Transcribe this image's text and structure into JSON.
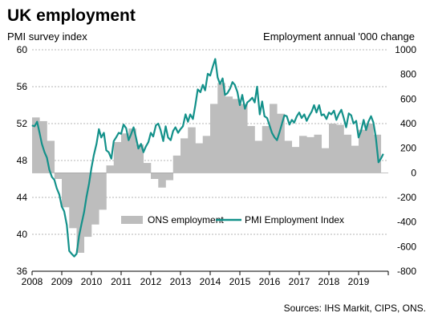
{
  "chart_data": {
    "type": "bar+line",
    "title": "UK employment",
    "left_axis_label": "PMI survey index",
    "right_axis_label": "Employment annual '000 change",
    "source": "Sources: IHS Markit, CIPS, ONS.",
    "x_ticks": [
      "2008",
      "2009",
      "2010",
      "2011",
      "2012",
      "2013",
      "2014",
      "2015",
      "2016",
      "2017",
      "2018",
      "2019"
    ],
    "x_range": [
      2008.0,
      2020.0
    ],
    "left_axis": {
      "min": 36,
      "max": 60,
      "ticks": [
        36,
        40,
        44,
        48,
        52,
        56,
        60
      ],
      "grid": true
    },
    "right_axis": {
      "min": -800,
      "max": 1000,
      "ticks": [
        -800,
        -600,
        -400,
        -200,
        0,
        200,
        400,
        600,
        800,
        1000
      ]
    },
    "legend": {
      "placement": "bottom-right",
      "entries": [
        "ONS employment",
        "PMI Employment Index"
      ]
    },
    "colors": {
      "ons_bars": "#bdbdbd",
      "pmi_line": "#13918a",
      "grid": "#9e9e9e"
    },
    "series": [
      {
        "name": "ONS employment",
        "kind": "bar",
        "axis": "right",
        "x": [
          2008.0,
          2008.25,
          2008.5,
          2008.75,
          2009.0,
          2009.25,
          2009.5,
          2009.75,
          2010.0,
          2010.25,
          2010.5,
          2010.75,
          2011.0,
          2011.25,
          2011.5,
          2011.75,
          2012.0,
          2012.25,
          2012.5,
          2012.75,
          2013.0,
          2013.25,
          2013.5,
          2013.75,
          2014.0,
          2014.25,
          2014.5,
          2014.75,
          2015.0,
          2015.25,
          2015.5,
          2015.75,
          2016.0,
          2016.25,
          2016.5,
          2016.75,
          2017.0,
          2017.25,
          2017.5,
          2017.75,
          2018.0,
          2018.25,
          2018.5,
          2018.75,
          2019.0,
          2019.25,
          2019.5
        ],
        "values": [
          450,
          420,
          260,
          -50,
          -280,
          -450,
          -650,
          -520,
          -420,
          -300,
          60,
          250,
          320,
          360,
          230,
          80,
          -50,
          -120,
          -60,
          140,
          280,
          370,
          240,
          300,
          560,
          730,
          620,
          600,
          560,
          380,
          260,
          380,
          560,
          480,
          260,
          210,
          300,
          290,
          310,
          200,
          400,
          390,
          310,
          220,
          350,
          400,
          310
        ]
      },
      {
        "name": "PMI Employment Index",
        "kind": "line",
        "axis": "left",
        "x": [
          2008.0,
          2008.08,
          2008.17,
          2008.25,
          2008.33,
          2008.42,
          2008.5,
          2008.58,
          2008.67,
          2008.75,
          2008.83,
          2008.92,
          2009.0,
          2009.08,
          2009.17,
          2009.25,
          2009.33,
          2009.42,
          2009.5,
          2009.58,
          2009.67,
          2009.75,
          2009.83,
          2009.92,
          2010.0,
          2010.08,
          2010.17,
          2010.25,
          2010.33,
          2010.42,
          2010.5,
          2010.58,
          2010.67,
          2010.75,
          2010.83,
          2010.92,
          2011.0,
          2011.08,
          2011.17,
          2011.25,
          2011.33,
          2011.42,
          2011.5,
          2011.58,
          2011.67,
          2011.75,
          2011.83,
          2011.92,
          2012.0,
          2012.08,
          2012.17,
          2012.25,
          2012.33,
          2012.42,
          2012.5,
          2012.58,
          2012.67,
          2012.75,
          2012.83,
          2012.92,
          2013.0,
          2013.08,
          2013.17,
          2013.25,
          2013.33,
          2013.42,
          2013.5,
          2013.58,
          2013.67,
          2013.75,
          2013.83,
          2013.92,
          2014.0,
          2014.08,
          2014.17,
          2014.25,
          2014.33,
          2014.42,
          2014.5,
          2014.58,
          2014.67,
          2014.75,
          2014.83,
          2014.92,
          2015.0,
          2015.08,
          2015.17,
          2015.25,
          2015.33,
          2015.42,
          2015.5,
          2015.58,
          2015.67,
          2015.75,
          2015.83,
          2015.92,
          2016.0,
          2016.08,
          2016.17,
          2016.25,
          2016.33,
          2016.42,
          2016.5,
          2016.58,
          2016.67,
          2016.75,
          2016.83,
          2016.92,
          2017.0,
          2017.08,
          2017.17,
          2017.25,
          2017.33,
          2017.42,
          2017.5,
          2017.58,
          2017.67,
          2017.75,
          2017.83,
          2017.92,
          2018.0,
          2018.08,
          2018.17,
          2018.25,
          2018.33,
          2018.42,
          2018.5,
          2018.58,
          2018.67,
          2018.75,
          2018.83,
          2018.92,
          2019.0,
          2019.08,
          2019.17,
          2019.25,
          2019.33,
          2019.42,
          2019.5,
          2019.58,
          2019.67,
          2019.75,
          2019.83
        ],
        "values": [
          51.8,
          51.7,
          52.2,
          51.0,
          49.8,
          48.9,
          48.3,
          47.0,
          46.2,
          45.9,
          45.0,
          44.3,
          43.0,
          42.5,
          41.0,
          38.2,
          37.9,
          37.6,
          37.9,
          39.8,
          41.2,
          42.4,
          44.0,
          45.5,
          47.2,
          48.6,
          49.8,
          51.4,
          50.5,
          51.0,
          49.1,
          48.9,
          48.2,
          50.1,
          50.5,
          51.0,
          50.9,
          51.9,
          51.5,
          50.2,
          50.8,
          51.6,
          50.5,
          49.3,
          49.8,
          48.9,
          49.5,
          50.0,
          51.0,
          50.6,
          51.8,
          52.0,
          51.3,
          50.1,
          51.7,
          50.5,
          50.2,
          51.2,
          51.6,
          51.0,
          51.4,
          51.7,
          53.0,
          52.2,
          53.0,
          52.5,
          54.0,
          55.7,
          55.4,
          56.2,
          55.6,
          57.4,
          57.2,
          58.1,
          59.0,
          57.0,
          56.3,
          56.9,
          55.1,
          55.3,
          55.8,
          56.5,
          56.2,
          55.4,
          54.0,
          55.1,
          53.6,
          54.3,
          54.5,
          54.8,
          54.3,
          56.0,
          53.0,
          54.4,
          52.8,
          52.6,
          51.8,
          51.0,
          50.5,
          50.2,
          51.0,
          52.0,
          52.9,
          52.8,
          51.9,
          52.4,
          52.1,
          52.8,
          53.2,
          52.6,
          53.0,
          52.3,
          52.8,
          53.3,
          54.0,
          53.2,
          54.0,
          52.9,
          53.0,
          52.5,
          53.2,
          53.0,
          53.4,
          52.4,
          53.0,
          53.5,
          52.6,
          51.6,
          53.1,
          52.9,
          52.0,
          52.3,
          50.5,
          51.2,
          52.4,
          51.3,
          52.2,
          52.8,
          52.1,
          50.5,
          47.8,
          48.2,
          48.7
        ]
      }
    ]
  }
}
